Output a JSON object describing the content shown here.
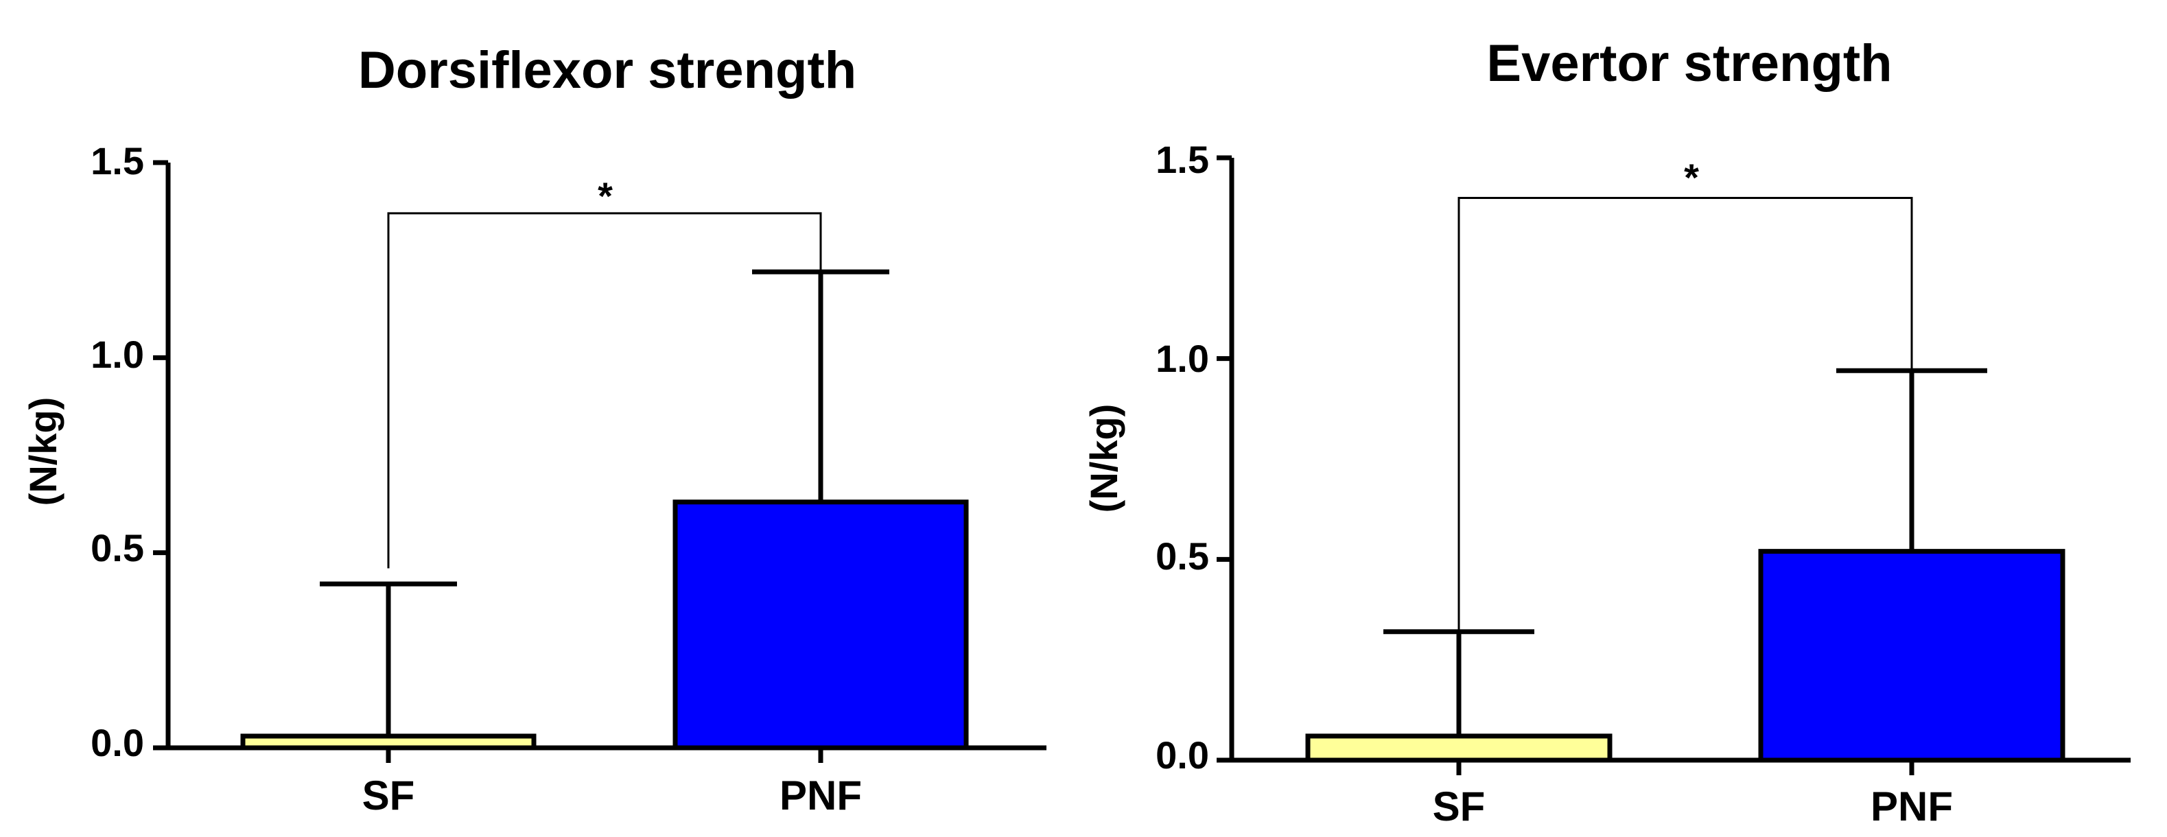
{
  "chart_data": [
    {
      "type": "bar",
      "title": "Dorsiflexor strength",
      "xlabel": "",
      "ylabel": "(N/kg)",
      "ylim": [
        0,
        1.5
      ],
      "yticks": [
        "0.0",
        "0.5",
        "1.0",
        "1.5"
      ],
      "categories": [
        "SF",
        "PNF"
      ],
      "values": [
        0.03,
        0.63
      ],
      "error_upper": [
        0.42,
        1.22
      ],
      "colors": [
        "#ffff99",
        "#0000ff"
      ],
      "significance": {
        "label": "*",
        "bracket_y": 1.37,
        "left_drop_y": 0.46,
        "right_drop_y": 1.22
      }
    },
    {
      "type": "bar",
      "title": "Evertor strength",
      "xlabel": "",
      "ylabel": "(N/kg)",
      "ylim": [
        0,
        1.5
      ],
      "yticks": [
        "0.0",
        "0.5",
        "1.0",
        "1.5"
      ],
      "categories": [
        "SF",
        "PNF"
      ],
      "values": [
        0.06,
        0.52
      ],
      "error_upper": [
        0.32,
        0.97
      ],
      "colors": [
        "#ffff99",
        "#0000ff"
      ],
      "significance": {
        "label": "*",
        "bracket_y": 1.4,
        "left_drop_y": 0.32,
        "right_drop_y": 0.97
      }
    }
  ]
}
